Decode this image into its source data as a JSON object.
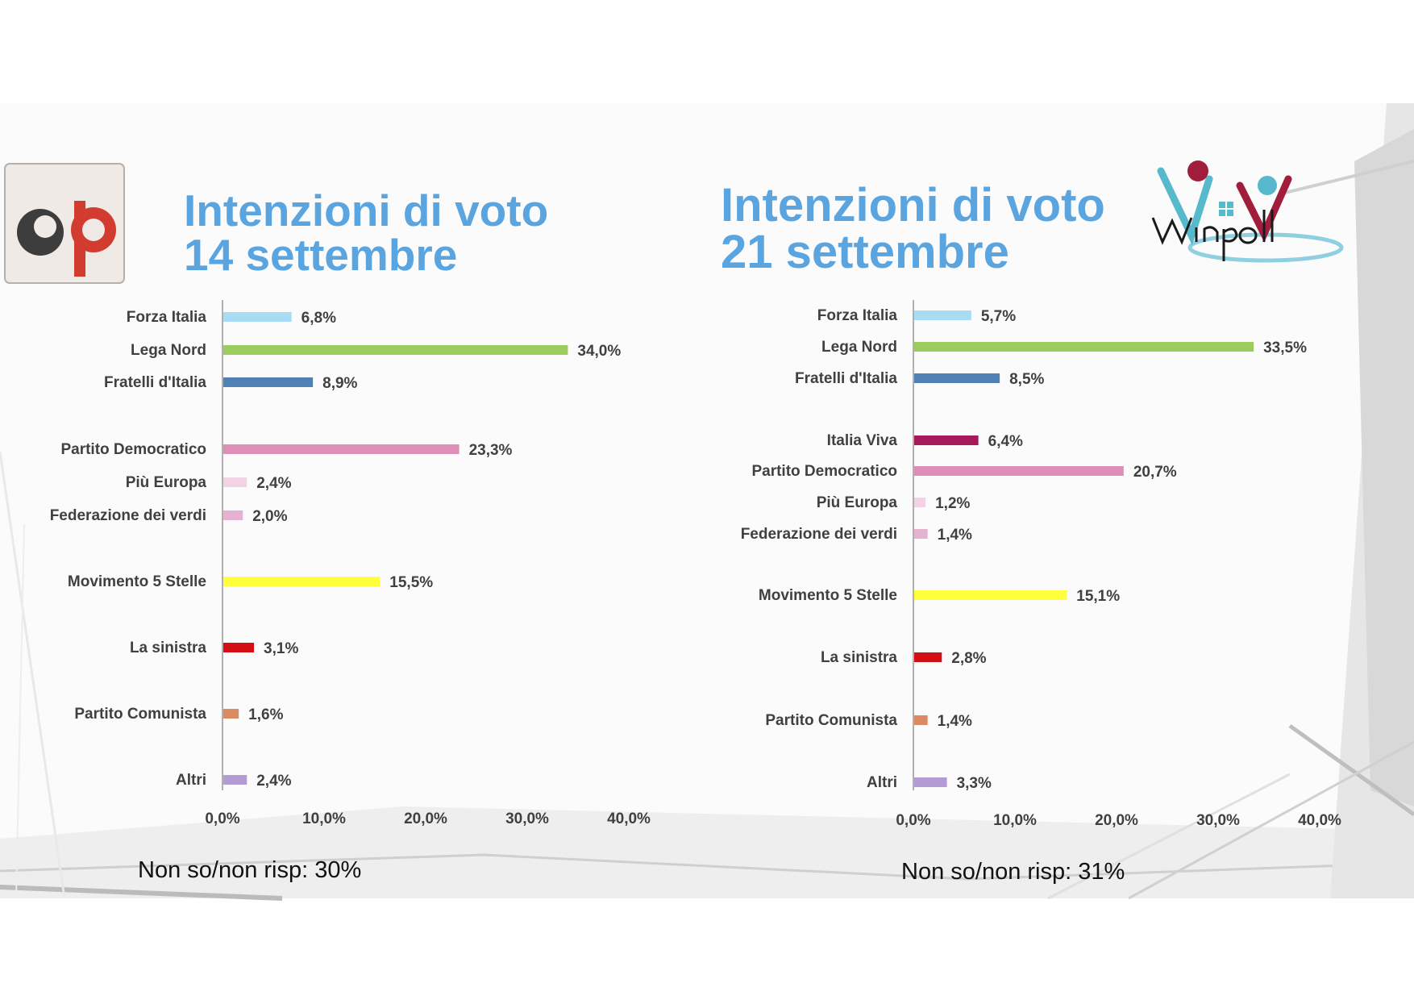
{
  "colors": {
    "title": "#5aa5e0",
    "label": "#404040",
    "axis": "#b0b0b0"
  },
  "left": {
    "title_line1": "Intenzioni di voto",
    "title_line2": "14 settembre",
    "footnote": "Non so/non risp: 30%",
    "logo": {
      "name": "sp-logo",
      "text": "sp"
    },
    "chart_data": {
      "type": "bar",
      "orientation": "horizontal",
      "categories": [
        "Forza Italia",
        "Lega Nord",
        "Fratelli d'Italia",
        "Partito Democratico",
        "Più Europa",
        "Federazione dei verdi",
        "Movimento 5 Stelle",
        "La sinistra",
        "Partito Comunista",
        "Altri"
      ],
      "values": [
        6.8,
        34.0,
        8.9,
        23.3,
        2.4,
        2.0,
        15.5,
        3.1,
        1.6,
        2.4
      ],
      "value_labels": [
        "6,8%",
        "34,0%",
        "8,9%",
        "23,3%",
        "2,4%",
        "2,0%",
        "15,5%",
        "3,1%",
        "1,6%",
        "2,4%"
      ],
      "colors": [
        "#a8dcf5",
        "#9ccc5c",
        "#4f81b4",
        "#dd8fb8",
        "#f2d3e5",
        "#e5b2d2",
        "#ffff3c",
        "#d40f14",
        "#dc8a62",
        "#b39cd6"
      ],
      "xticks": [
        "0,0%",
        "10,0%",
        "20,0%",
        "30,0%",
        "40,0%"
      ],
      "xlim": [
        0,
        40
      ],
      "title": "",
      "xlabel": "",
      "ylabel": ""
    }
  },
  "right": {
    "title_line1": "Intenzioni di voto",
    "title_line2": "21 settembre",
    "footnote": "Non so/non risp: 31%",
    "logo": {
      "name": "winpoll-logo",
      "text": "Winpoll"
    },
    "chart_data": {
      "type": "bar",
      "orientation": "horizontal",
      "categories": [
        "Forza Italia",
        "Lega Nord",
        "Fratelli d'Italia",
        "Italia Viva",
        "Partito Democratico",
        "Più Europa",
        "Federazione dei verdi",
        "Movimento 5 Stelle",
        "La sinistra",
        "Partito Comunista",
        "Altri"
      ],
      "values": [
        5.7,
        33.5,
        8.5,
        6.4,
        20.7,
        1.2,
        1.4,
        15.1,
        2.8,
        1.4,
        3.3
      ],
      "value_labels": [
        "5,7%",
        "33,5%",
        "8,5%",
        "6,4%",
        "20,7%",
        "1,2%",
        "1,4%",
        "15,1%",
        "2,8%",
        "1,4%",
        "3,3%"
      ],
      "colors": [
        "#a8dcf5",
        "#9ccc5c",
        "#4f81b4",
        "#a6195a",
        "#dd8fb8",
        "#f2d3e5",
        "#e5b2d2",
        "#ffff3c",
        "#d40f14",
        "#dc8a62",
        "#b39cd6"
      ],
      "xticks": [
        "0,0%",
        "10,0%",
        "20,0%",
        "30,0%",
        "40,0%"
      ],
      "xlim": [
        0,
        40
      ],
      "title": "",
      "xlabel": "",
      "ylabel": ""
    }
  }
}
